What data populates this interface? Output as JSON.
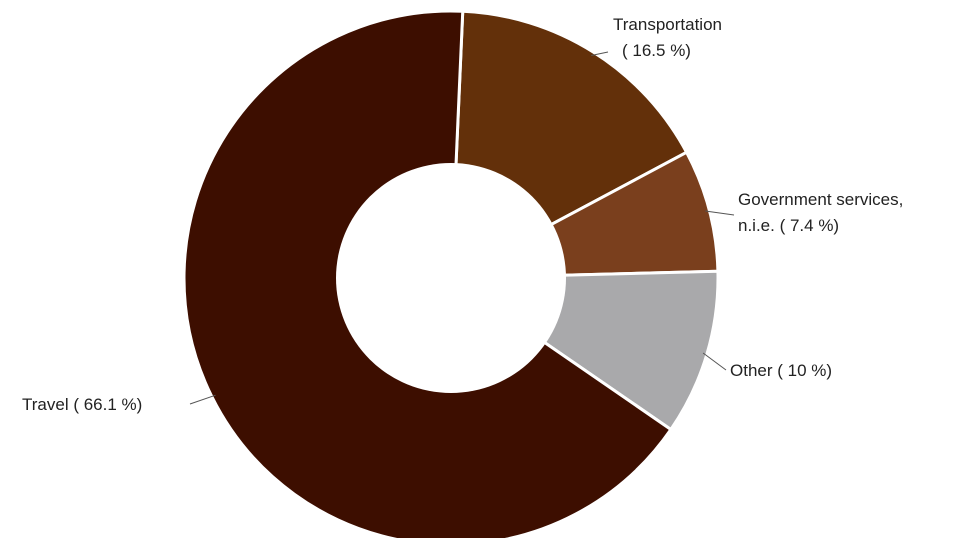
{
  "chart_data": {
    "type": "pie",
    "donut": true,
    "title": "",
    "categories": [
      "Transportation",
      "Government services, n.i.e.",
      "Other",
      "Travel"
    ],
    "values": [
      16.5,
      7.4,
      10,
      66.1
    ],
    "unit": "%",
    "colors": [
      "#63300a",
      "#7a3f1d",
      "#a9a9ab",
      "#3d0e00"
    ],
    "labels": [
      {
        "line1": "Transportation",
        "line2": "( 16.5 %)"
      },
      {
        "line1": "Government services,",
        "line2": "n.i.e. ( 7.4 %)"
      },
      {
        "line1": "Other ( 10 %)",
        "line2": ""
      },
      {
        "line1": "Travel ( 66.1 %)",
        "line2": ""
      }
    ],
    "legend": "none",
    "grid": false
  }
}
